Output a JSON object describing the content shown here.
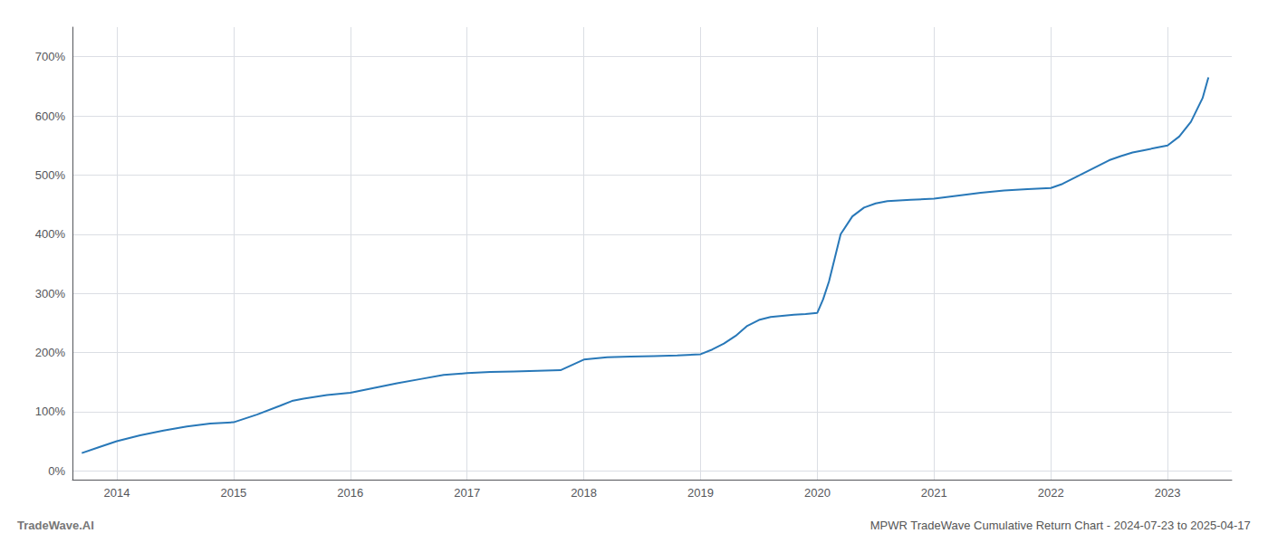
{
  "chart_data": {
    "type": "line",
    "title": "MPWR TradeWave Cumulative Return Chart - 2024-07-23 to 2025-04-17",
    "annotations": [
      "TradeWave.AI"
    ],
    "color": "#2878b8",
    "grid": true,
    "xlim": [
      2013.62,
      2023.55
    ],
    "xticks": [
      2014,
      2015,
      2016,
      2017,
      2018,
      2019,
      2020,
      2021,
      2022,
      2023
    ],
    "ylim": [
      -0.15,
      7.5
    ],
    "yticks": [
      {
        "value": 0,
        "label": "0%"
      },
      {
        "value": 1,
        "label": "100%"
      },
      {
        "value": 2,
        "label": "200%"
      },
      {
        "value": 3,
        "label": "300%"
      },
      {
        "value": 4,
        "label": "400%"
      },
      {
        "value": 5,
        "label": "500%"
      },
      {
        "value": 6,
        "label": "600%"
      },
      {
        "value": 7,
        "label": "700%"
      }
    ],
    "x": [
      2013.7,
      2013.85,
      2014.0,
      2014.2,
      2014.4,
      2014.6,
      2014.8,
      2015.0,
      2015.2,
      2015.4,
      2015.5,
      2015.6,
      2015.8,
      2016.0,
      2016.2,
      2016.4,
      2016.6,
      2016.8,
      2017.0,
      2017.2,
      2017.4,
      2017.6,
      2017.8,
      2018.0,
      2018.1,
      2018.2,
      2018.4,
      2018.6,
      2018.8,
      2019.0,
      2019.1,
      2019.2,
      2019.3,
      2019.4,
      2019.5,
      2019.6,
      2019.7,
      2019.8,
      2019.9,
      2020.0,
      2020.05,
      2020.1,
      2020.15,
      2020.2,
      2020.3,
      2020.4,
      2020.5,
      2020.6,
      2020.8,
      2021.0,
      2021.2,
      2021.4,
      2021.5,
      2021.6,
      2021.8,
      2022.0,
      2022.1,
      2022.2,
      2022.3,
      2022.4,
      2022.5,
      2022.6,
      2022.7,
      2022.8,
      2022.9,
      2023.0,
      2023.1,
      2023.2,
      2023.3,
      2023.35
    ],
    "values": [
      0.3,
      0.4,
      0.5,
      0.6,
      0.68,
      0.75,
      0.8,
      0.82,
      0.95,
      1.1,
      1.18,
      1.22,
      1.28,
      1.32,
      1.4,
      1.48,
      1.55,
      1.62,
      1.65,
      1.67,
      1.68,
      1.69,
      1.7,
      1.88,
      1.9,
      1.92,
      1.93,
      1.94,
      1.95,
      1.97,
      2.05,
      2.15,
      2.28,
      2.45,
      2.55,
      2.6,
      2.62,
      2.64,
      2.65,
      2.67,
      2.9,
      3.2,
      3.6,
      4.0,
      4.3,
      4.45,
      4.52,
      4.56,
      4.58,
      4.6,
      4.65,
      4.7,
      4.72,
      4.74,
      4.76,
      4.78,
      4.85,
      4.95,
      5.05,
      5.15,
      5.25,
      5.32,
      5.38,
      5.42,
      5.46,
      5.5,
      5.65,
      5.9,
      6.3,
      6.65
    ]
  }
}
